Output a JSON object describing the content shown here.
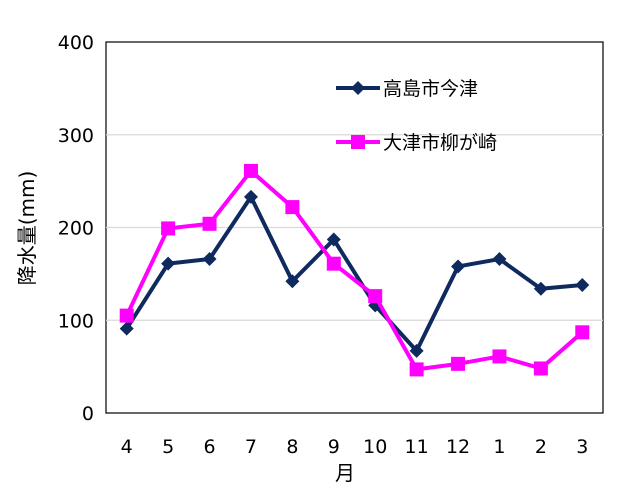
{
  "chart_data": {
    "type": "line",
    "title": "",
    "xlabel": "月",
    "ylabel": "降水量(mm)",
    "ylim": [
      0,
      400
    ],
    "yticks": [
      0,
      100,
      200,
      300,
      400
    ],
    "grid": true,
    "legend_position": "top-right",
    "categories": [
      "4",
      "5",
      "6",
      "7",
      "8",
      "9",
      "10",
      "11",
      "12",
      "1",
      "2",
      "3"
    ],
    "series": [
      {
        "name": "高島市今津",
        "color": "#0e2a5f",
        "marker": "diamond",
        "values": [
          91,
          161,
          166,
          233,
          142,
          187,
          116,
          67,
          158,
          166,
          134,
          138
        ]
      },
      {
        "name": "大津市柳が崎",
        "color": "#ff00ff",
        "marker": "square",
        "values": [
          105,
          199,
          204,
          261,
          222,
          161,
          126,
          47,
          53,
          61,
          48,
          87
        ]
      }
    ]
  }
}
